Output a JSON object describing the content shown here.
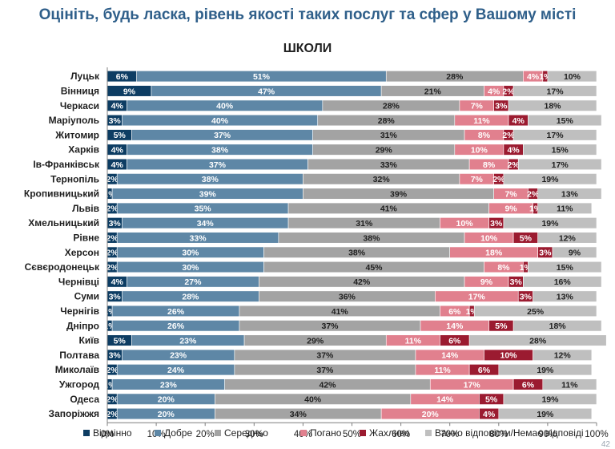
{
  "page": {
    "title": "Оцініть, будь ласка, рівень якості таких послуг та сфер у Вашому місті",
    "page_number": "42"
  },
  "chart_data": {
    "type": "bar",
    "orientation": "horizontal",
    "stacked": true,
    "percent_stacked": true,
    "title": "ШКОЛИ",
    "xlim": [
      0,
      100
    ],
    "x_ticks": [
      "0%",
      "10%",
      "20%",
      "30%",
      "40%",
      "50%",
      "60%",
      "70%",
      "80%",
      "90%",
      "100%"
    ],
    "legend_position": "bottom",
    "grid": false,
    "categories": [
      "Луцьк",
      "Вінниця",
      "Черкаси",
      "Маріуполь",
      "Житомир",
      "Харків",
      "Ів-Франківськ",
      "Тернопіль",
      "Кропивницький",
      "Львів",
      "Хмельницький",
      "Рівне",
      "Херсон",
      "Сєвєродонецьк",
      "Чернівці",
      "Суми",
      "Чернігів",
      "Дніпро",
      "Київ",
      "Полтава",
      "Миколаїв",
      "Ужгород",
      "Одеса",
      "Запоріжжя"
    ],
    "series": [
      {
        "name": "Відмінно",
        "color": "#0d3d63",
        "label_color": "#ffffff",
        "values": [
          6,
          9,
          4,
          3,
          5,
          4,
          4,
          2,
          1,
          2,
          3,
          2,
          2,
          2,
          4,
          3,
          1,
          1,
          5,
          3,
          2,
          1,
          2,
          2
        ]
      },
      {
        "name": "Добре",
        "color": "#5e87a6",
        "label_color": "#ffffff",
        "values": [
          51,
          47,
          40,
          40,
          37,
          38,
          37,
          38,
          39,
          35,
          34,
          33,
          30,
          30,
          27,
          28,
          26,
          26,
          23,
          23,
          24,
          23,
          20,
          20
        ]
      },
      {
        "name": "Середньо",
        "color": "#a3a3a3",
        "label_color": "#1f1f1f",
        "values": [
          28,
          21,
          28,
          28,
          31,
          29,
          33,
          32,
          39,
          41,
          31,
          38,
          38,
          45,
          42,
          36,
          41,
          37,
          29,
          37,
          37,
          42,
          40,
          34
        ]
      },
      {
        "name": "Погано",
        "color": "#e1808e",
        "label_color": "#ffffff",
        "values": [
          4,
          4,
          7,
          11,
          8,
          10,
          8,
          7,
          7,
          9,
          10,
          10,
          18,
          8,
          9,
          17,
          6,
          14,
          11,
          14,
          11,
          17,
          14,
          20
        ]
      },
      {
        "name": "Жахливо",
        "color": "#9b1b30",
        "label_color": "#ffffff",
        "values": [
          1,
          2,
          3,
          4,
          2,
          4,
          2,
          2,
          2,
          1,
          3,
          5,
          3,
          1,
          3,
          3,
          1,
          5,
          6,
          10,
          6,
          6,
          5,
          4
        ]
      },
      {
        "name": "Важко відповісти/Немає відповіді",
        "color": "#bfbfbf",
        "label_color": "#1f1f1f",
        "values": [
          10,
          17,
          18,
          15,
          17,
          15,
          17,
          19,
          13,
          11,
          19,
          12,
          9,
          15,
          16,
          13,
          25,
          18,
          28,
          12,
          19,
          11,
          19,
          19
        ]
      }
    ]
  }
}
